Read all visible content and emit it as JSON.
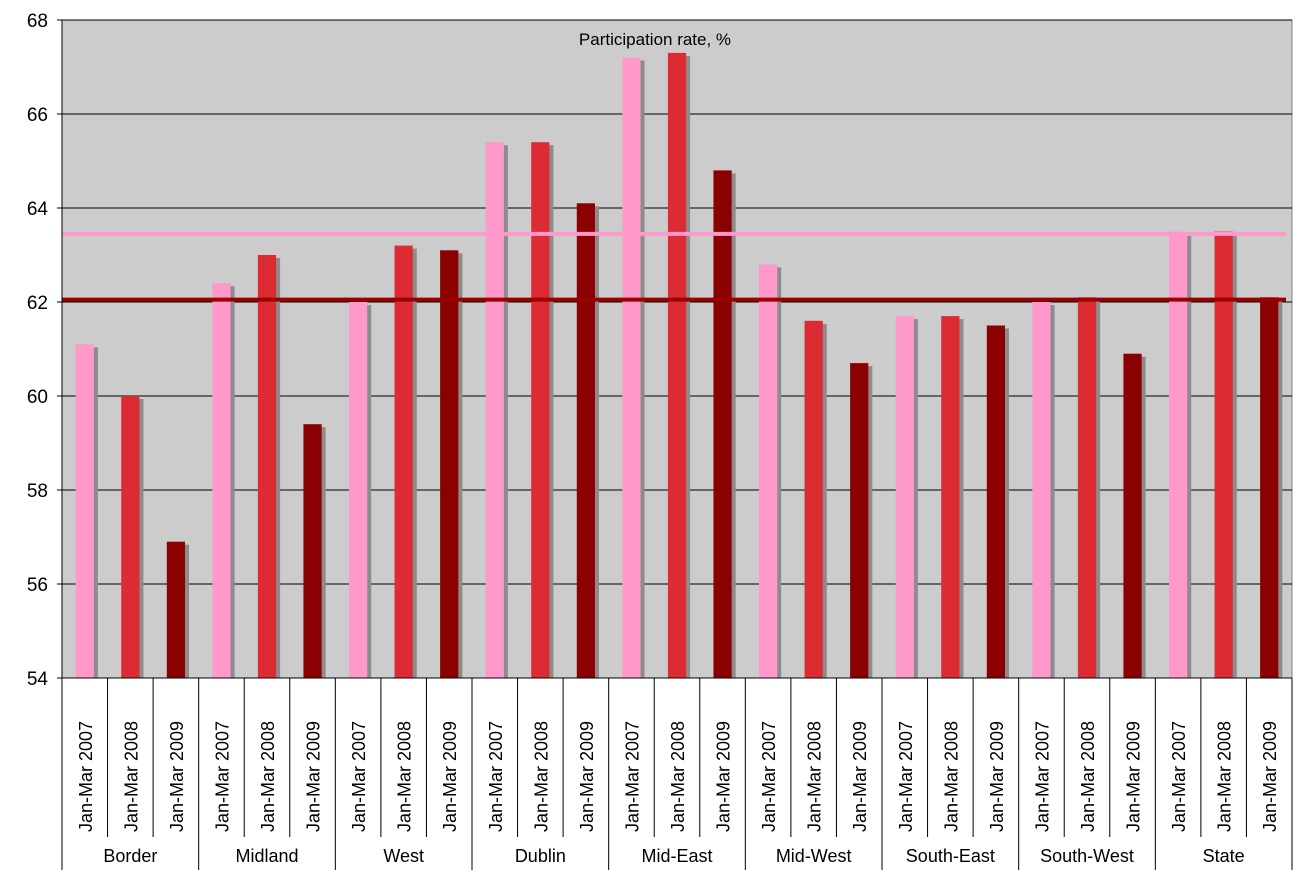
{
  "chart_data": {
    "type": "bar",
    "title": "Participation rate, %",
    "ylim": [
      54,
      68
    ],
    "yticks": [
      54,
      56,
      58,
      60,
      62,
      64,
      66,
      68
    ],
    "grid": true,
    "subcategories": [
      "Jan-Mar 2007",
      "Jan-Mar 2008",
      "Jan-Mar 2009"
    ],
    "groups": [
      "Border",
      "Midland",
      "West",
      "Dublin",
      "Mid-East",
      "Mid-West",
      "South-East",
      "South-West",
      "State"
    ],
    "series_colors": [
      "#ff99cc",
      "#dd2b33",
      "#8b0000"
    ],
    "values": [
      [
        61.1,
        60.0,
        56.9
      ],
      [
        62.4,
        63.0,
        59.4
      ],
      [
        62.0,
        63.2,
        63.1
      ],
      [
        65.4,
        65.4,
        64.1
      ],
      [
        67.2,
        67.3,
        64.8
      ],
      [
        62.8,
        61.6,
        60.7
      ],
      [
        61.7,
        61.7,
        61.5
      ],
      [
        62.0,
        62.1,
        60.9
      ],
      [
        63.5,
        63.5,
        62.1
      ]
    ],
    "reference_lines": [
      {
        "value": 63.45,
        "color": "#ff99cc"
      },
      {
        "value": 62.05,
        "color": "#990000"
      }
    ]
  }
}
